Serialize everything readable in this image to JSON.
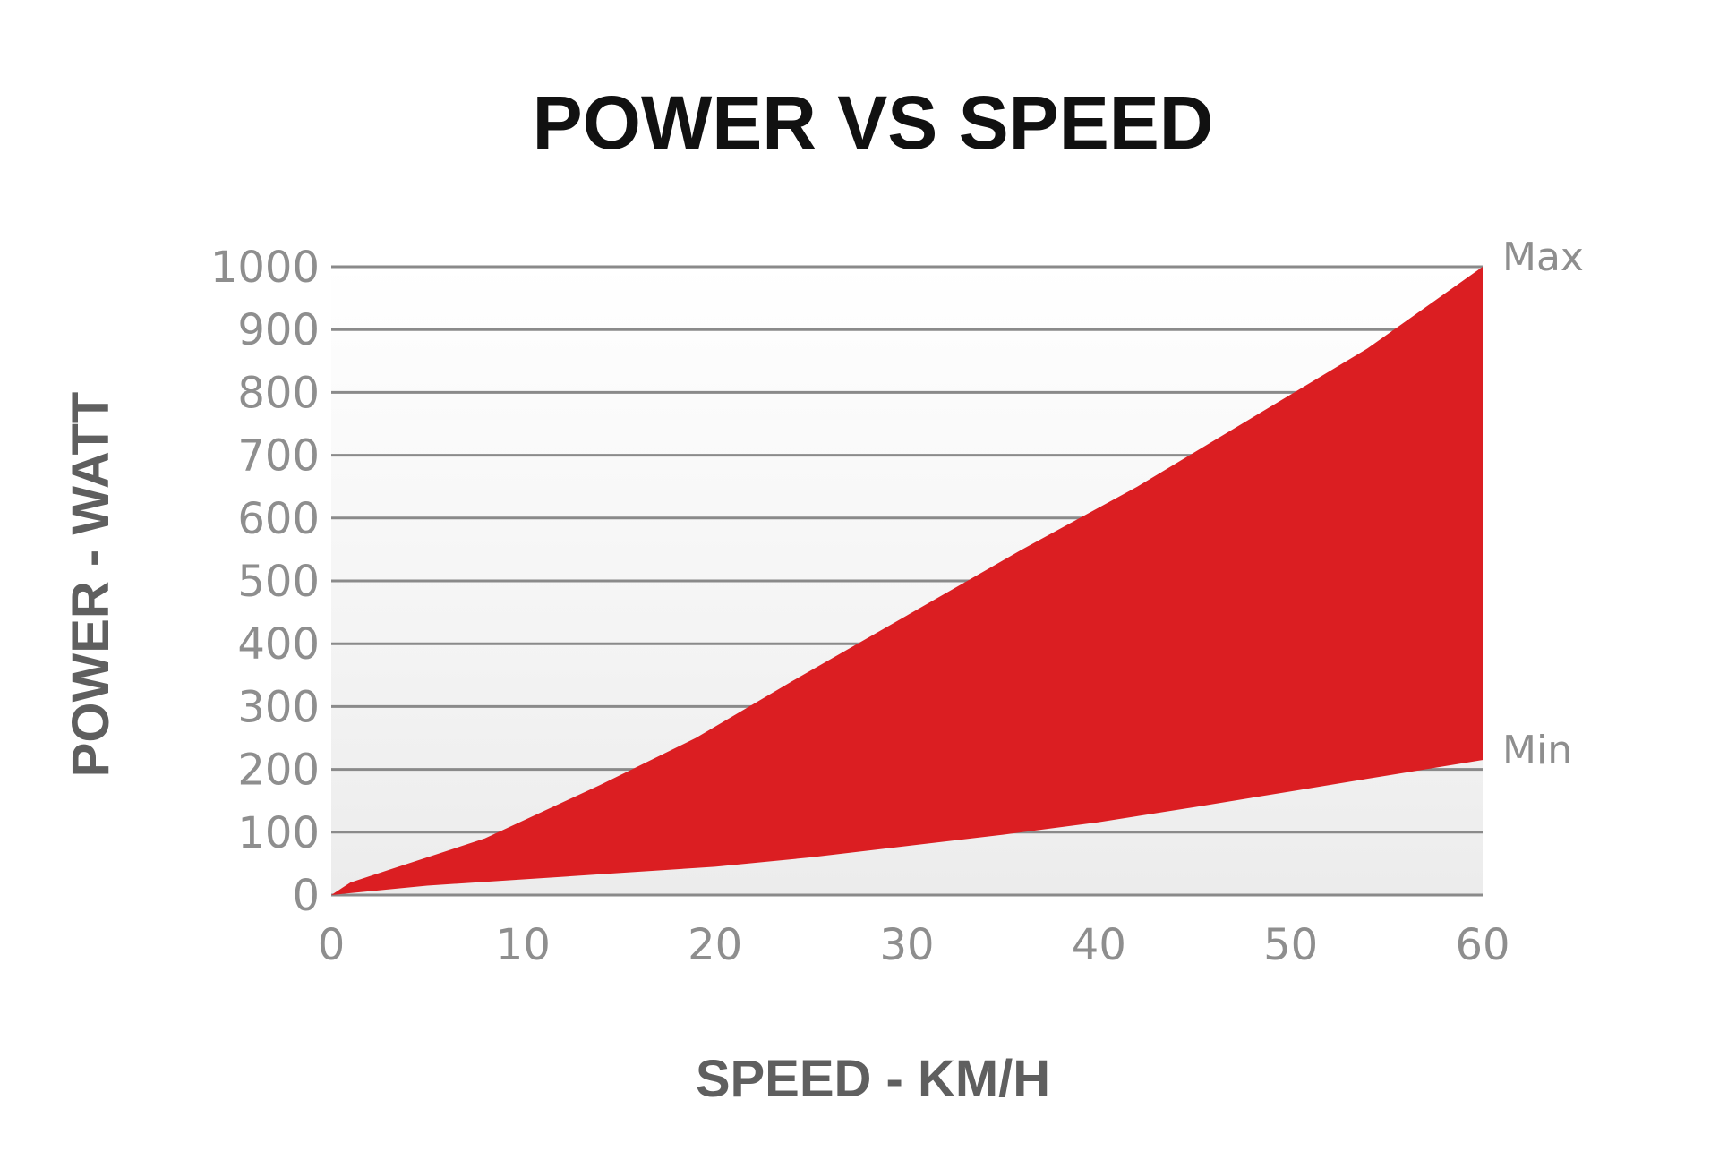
{
  "chart_data": {
    "type": "area",
    "title": "POWER VS SPEED",
    "xlabel": "SPEED - KM/H",
    "ylabel": "POWER - WATT",
    "xlim": [
      0,
      60
    ],
    "ylim": [
      0,
      1000
    ],
    "x_ticks": [
      "0",
      "10",
      "20",
      "30",
      "40",
      "50",
      "60"
    ],
    "y_ticks": [
      "0",
      "100",
      "200",
      "300",
      "400",
      "500",
      "600",
      "700",
      "800",
      "900",
      "1000"
    ],
    "grid": true,
    "fill_color": "#db1e22",
    "series": [
      {
        "name": "Max",
        "x": [
          0,
          1,
          3,
          8,
          14,
          19,
          24,
          30,
          36,
          42,
          48,
          54,
          60
        ],
        "y": [
          0,
          20,
          40,
          90,
          175,
          250,
          340,
          445,
          550,
          650,
          760,
          870,
          1000
        ]
      },
      {
        "name": "Min",
        "x": [
          0,
          5,
          10,
          15,
          20,
          25,
          30,
          35,
          40,
          45,
          50,
          55,
          60
        ],
        "y": [
          0,
          15,
          25,
          35,
          45,
          60,
          78,
          96,
          116,
          140,
          165,
          190,
          215
        ]
      }
    ]
  }
}
